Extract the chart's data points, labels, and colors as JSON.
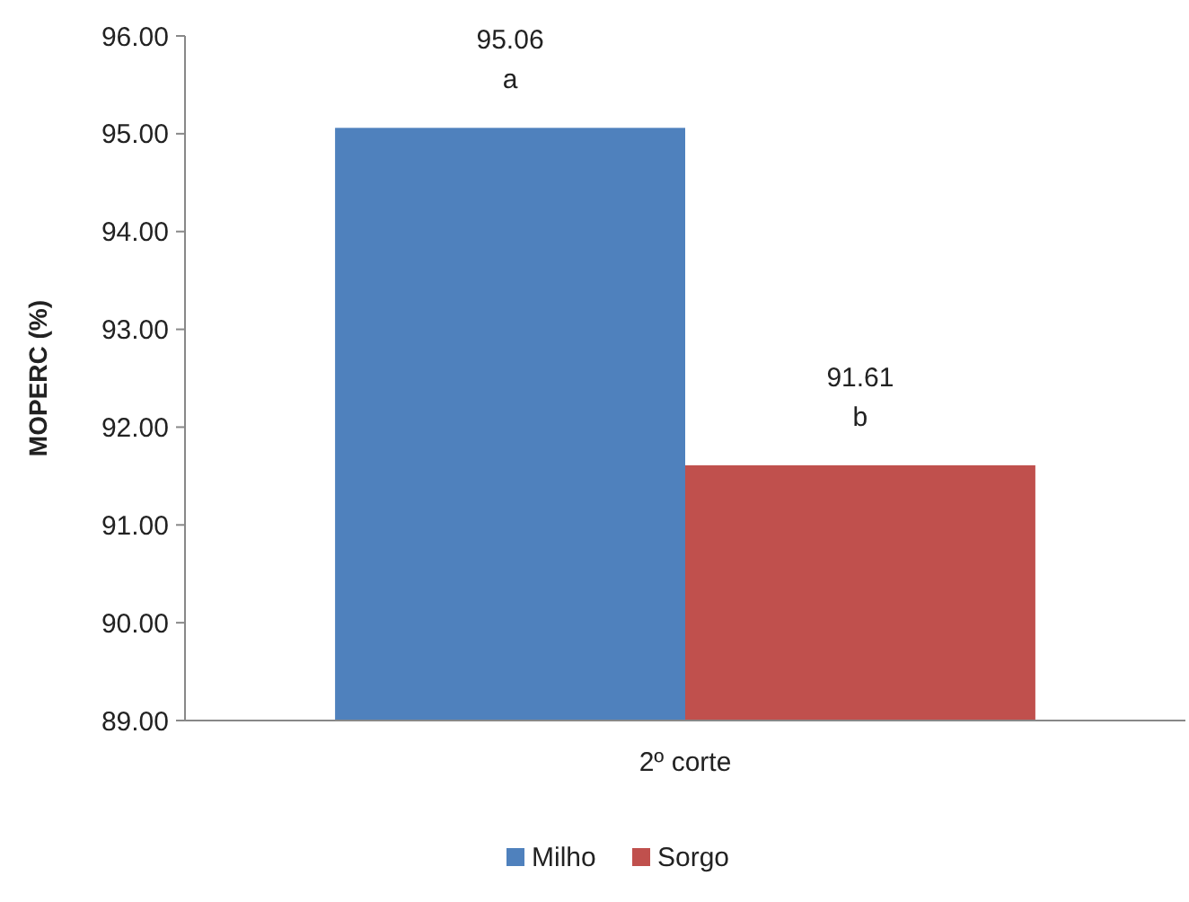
{
  "chart_data": {
    "type": "bar",
    "ylabel": "MOPERC (%)",
    "categories": [
      "2º corte"
    ],
    "series": [
      {
        "name": "Milho",
        "color": "#4f81bd",
        "values": [
          95.06
        ]
      },
      {
        "name": "Sorgo",
        "color": "#c0504d",
        "values": [
          91.61
        ]
      }
    ],
    "ylim": [
      89,
      96
    ],
    "yticks": [
      {
        "value": 89,
        "label": "89.00"
      },
      {
        "value": 90,
        "label": "90.00"
      },
      {
        "value": 91,
        "label": "91.00"
      },
      {
        "value": 92,
        "label": "92.00"
      },
      {
        "value": 93,
        "label": "93.00"
      },
      {
        "value": 94,
        "label": "94.00"
      },
      {
        "value": 95,
        "label": "95.00"
      },
      {
        "value": 96,
        "label": "96.00"
      }
    ],
    "data_labels": true,
    "annotations": [
      "a",
      "b"
    ],
    "legend": "bottom",
    "grid": false
  }
}
